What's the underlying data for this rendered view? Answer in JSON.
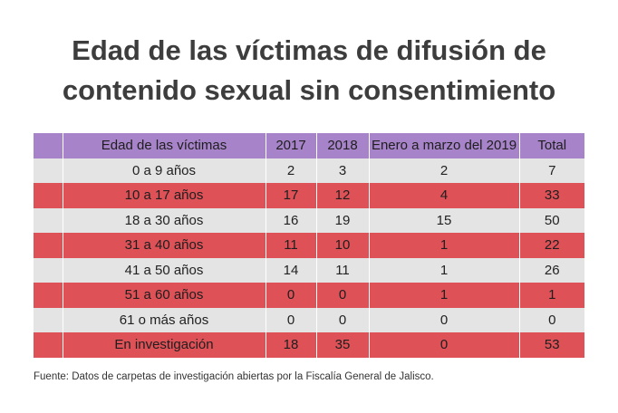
{
  "title": {
    "line1": "Edad de las víctimas de difusión de",
    "line2": "contenido sexual sin consentimiento"
  },
  "chart_data": {
    "type": "table",
    "columns": [
      "Edad de las víctimas",
      "2017",
      "2018",
      "Enero a marzo del 2019",
      "Total"
    ],
    "rows": [
      [
        "0 a 9 años",
        "2",
        "3",
        "2",
        "7"
      ],
      [
        "10 a 17 años",
        "17",
        "12",
        "4",
        "33"
      ],
      [
        "18 a 30 años",
        "16",
        "19",
        "15",
        "50"
      ],
      [
        "31 a 40 años",
        "11",
        "10",
        "1",
        "22"
      ],
      [
        "41 a 50 años",
        "14",
        "11",
        "1",
        "26"
      ],
      [
        "51 a 60 años",
        "0",
        "0",
        "1",
        "1"
      ],
      [
        "61 o más años",
        "0",
        "0",
        "0",
        "0"
      ],
      [
        "En investigación",
        "18",
        "35",
        "0",
        "53"
      ]
    ],
    "header_color": "#a783c9",
    "row_colors": [
      "#e4e4e4",
      "#dd5157"
    ]
  },
  "source": "Fuente: Datos de carpetas de investigación abiertas por la Fiscalía General de Jalisco."
}
